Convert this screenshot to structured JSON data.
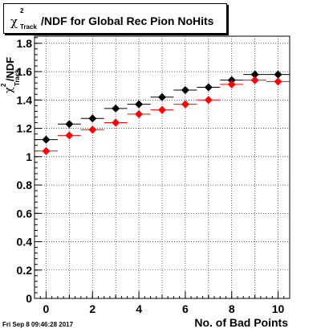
{
  "title_box": {
    "symbol": "χ",
    "superscript": "2",
    "subscript": "Track",
    "text": "/NDF for Global Rec Pion NoHits"
  },
  "timestamp": "Fri Sep  8 09:46:28 2017",
  "chart_data": {
    "type": "scatter",
    "xlabel": "No. of Bad Points",
    "ylabel_top": "χ",
    "ylabel_sup": "2",
    "ylabel_sub": "Track",
    "ylabel_tail": "/NDF",
    "xlim": [
      -0.5,
      10.5
    ],
    "ylim": [
      0,
      1.85
    ],
    "grid": true,
    "x_ticks": [
      0,
      2,
      4,
      6,
      8,
      10
    ],
    "y_ticks": [
      0,
      0.2,
      0.4,
      0.6,
      0.8,
      1,
      1.2,
      1.4,
      1.6,
      1.8
    ],
    "y_tick_labels": [
      "0",
      "0.2",
      "0.4",
      "0.6",
      "0.8",
      "1",
      "1.2",
      "1.4",
      "1.6",
      "1.8"
    ],
    "x": [
      0,
      1,
      2,
      3,
      4,
      5,
      6,
      7,
      8,
      9,
      10
    ],
    "xerr": 0.5,
    "series": [
      {
        "color": "#000000",
        "values": [
          1.12,
          1.23,
          1.27,
          1.34,
          1.37,
          1.42,
          1.47,
          1.49,
          1.54,
          1.58,
          1.58
        ]
      },
      {
        "color": "#ff0000",
        "values": [
          1.04,
          1.15,
          1.19,
          1.24,
          1.3,
          1.33,
          1.37,
          1.4,
          1.51,
          1.54,
          1.53
        ]
      }
    ]
  }
}
